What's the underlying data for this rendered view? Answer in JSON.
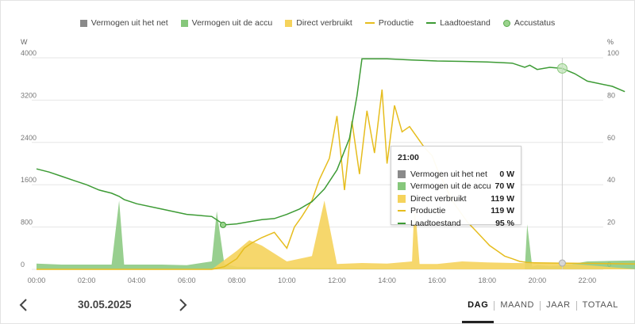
{
  "legend": [
    {
      "label": "Vermogen uit het net",
      "color": "#8a8a8a",
      "kind": "square"
    },
    {
      "label": "Vermogen uit de accu",
      "color": "#86c77b",
      "kind": "square"
    },
    {
      "label": "Direct verbruikt",
      "color": "#f5d35c",
      "kind": "square"
    },
    {
      "label": "Productie",
      "color": "#e6bd1e",
      "kind": "line"
    },
    {
      "label": "Laadtoestand",
      "color": "#3d9b35",
      "kind": "line"
    },
    {
      "label": "Accustatus",
      "color": "#9ad38d",
      "kind": "dot"
    }
  ],
  "axes": {
    "left_unit": "W",
    "right_unit": "%",
    "left_ticks": [
      "0",
      "800",
      "1600",
      "2400",
      "3200",
      "4000"
    ],
    "right_ticks": [
      "0",
      "20",
      "40",
      "60",
      "80",
      "100"
    ],
    "x_ticks": [
      "00:00",
      "02:00",
      "04:00",
      "06:00",
      "08:00",
      "10:00",
      "12:00",
      "14:00",
      "16:00",
      "18:00",
      "20:00",
      "22:00"
    ]
  },
  "chart_data": {
    "type": "line",
    "x_unit": "hour of day",
    "y_left": {
      "label": "W",
      "range": [
        0,
        4000
      ]
    },
    "y_right": {
      "label": "%",
      "range": [
        0,
        100
      ]
    },
    "series": [
      {
        "name": "Laadtoestand",
        "axis": "right",
        "x": [
          0,
          0.5,
          1,
          1.5,
          2,
          2.5,
          3,
          3.3,
          3.5,
          4,
          5,
          6,
          7,
          7.5,
          8,
          8.5,
          9,
          9.5,
          10,
          10.5,
          11,
          11.5,
          12,
          12.5,
          12.8,
          13,
          14,
          15,
          16,
          17,
          18,
          19,
          19.5,
          19.7,
          20,
          20.5,
          21,
          21.5,
          22,
          23,
          23.5
        ],
        "values": [
          47.5,
          46,
          44,
          42,
          40,
          37.5,
          36,
          34.5,
          33,
          31,
          28.5,
          26,
          25,
          21,
          21.5,
          22.5,
          23.5,
          24,
          26,
          28.5,
          32,
          38,
          47,
          62,
          82,
          99.5,
          99.5,
          99,
          98.5,
          98.3,
          98,
          97.5,
          95.5,
          96.5,
          94.5,
          95.5,
          95,
          92.5,
          89,
          86.5,
          84
        ]
      },
      {
        "name": "Productie",
        "axis": "left",
        "x": [
          0,
          7.0,
          7.5,
          8.0,
          8.3,
          8.6,
          9.0,
          9.5,
          10.0,
          10.3,
          10.6,
          11.0,
          11.3,
          11.7,
          12.0,
          12.3,
          12.6,
          12.9,
          13.2,
          13.5,
          13.8,
          14.0,
          14.3,
          14.6,
          14.9,
          15.2,
          15.5,
          15.8,
          16.0,
          16.3,
          16.6,
          16.9,
          17.2,
          17.5,
          17.8,
          18.1,
          18.4,
          18.7,
          19.0,
          19.3,
          19.6,
          19.9,
          20.2,
          20.5,
          20.8,
          21.0,
          24
        ],
        "values": [
          0,
          0,
          50,
          200,
          400,
          500,
          600,
          700,
          400,
          800,
          1000,
          1300,
          1700,
          2100,
          2900,
          1500,
          2800,
          1800,
          3000,
          2200,
          3400,
          2000,
          3100,
          2600,
          2700,
          2500,
          2300,
          2150,
          1900,
          1600,
          1300,
          1100,
          900,
          750,
          600,
          450,
          350,
          250,
          200,
          150,
          130,
          125,
          122,
          120,
          119,
          119,
          100
        ]
      },
      {
        "name": "Direct verbruikt",
        "axis": "left",
        "x": [
          0,
          7.0,
          8.0,
          8.5,
          9.0,
          9.5,
          10.0,
          11.0,
          11.5,
          12.0,
          13.0,
          14.0,
          15.0,
          15.1,
          15.3,
          16.0,
          17.0,
          18.0,
          19.0,
          20.0,
          21.0,
          24
        ],
        "values": [
          0,
          0,
          350,
          550,
          450,
          300,
          150,
          250,
          1300,
          100,
          120,
          110,
          150,
          1300,
          100,
          100,
          150,
          130,
          120,
          119,
          119,
          0
        ]
      },
      {
        "name": "Vermogen uit de accu",
        "axis": "left",
        "x": [
          0,
          1.0,
          2.0,
          3.0,
          3.3,
          3.5,
          4.0,
          5.0,
          6.0,
          7.0,
          7.2,
          7.5,
          8.0,
          16.0,
          17.0,
          18.0,
          19.0,
          19.5,
          19.6,
          19.8,
          20.0,
          20.5,
          21.0,
          22.0,
          23.0,
          24
        ],
        "values": [
          110,
          90,
          90,
          90,
          1300,
          90,
          90,
          90,
          80,
          150,
          1100,
          100,
          50,
          0,
          0,
          0,
          0,
          0,
          850,
          50,
          80,
          60,
          70,
          150,
          160,
          170
        ]
      },
      {
        "name": "Vermogen uit het net",
        "axis": "left",
        "x": [
          0,
          24
        ],
        "values": [
          0,
          0
        ]
      }
    ]
  },
  "tooltip": {
    "title": "21:00",
    "rows": [
      {
        "label": "Vermogen uit het net",
        "value": "0 W",
        "color": "#8a8a8a",
        "kind": "square"
      },
      {
        "label": "Vermogen uit de accu",
        "value": "70 W",
        "color": "#86c77b",
        "kind": "square"
      },
      {
        "label": "Direct verbruikt",
        "value": "119 W",
        "color": "#f5d35c",
        "kind": "square"
      },
      {
        "label": "Productie",
        "value": "119 W",
        "color": "#e6bd1e",
        "kind": "line"
      },
      {
        "label": "Laadtoestand",
        "value": "95 %",
        "color": "#3d9b35",
        "kind": "line"
      }
    ]
  },
  "bottom": {
    "prev_icon": "chevron-left-icon",
    "next_icon": "chevron-right-icon",
    "date": "30.05.2025",
    "tabs": [
      "DAG",
      "MAAND",
      "JAAR",
      "TOTAAL"
    ],
    "active_tab": "DAG"
  }
}
